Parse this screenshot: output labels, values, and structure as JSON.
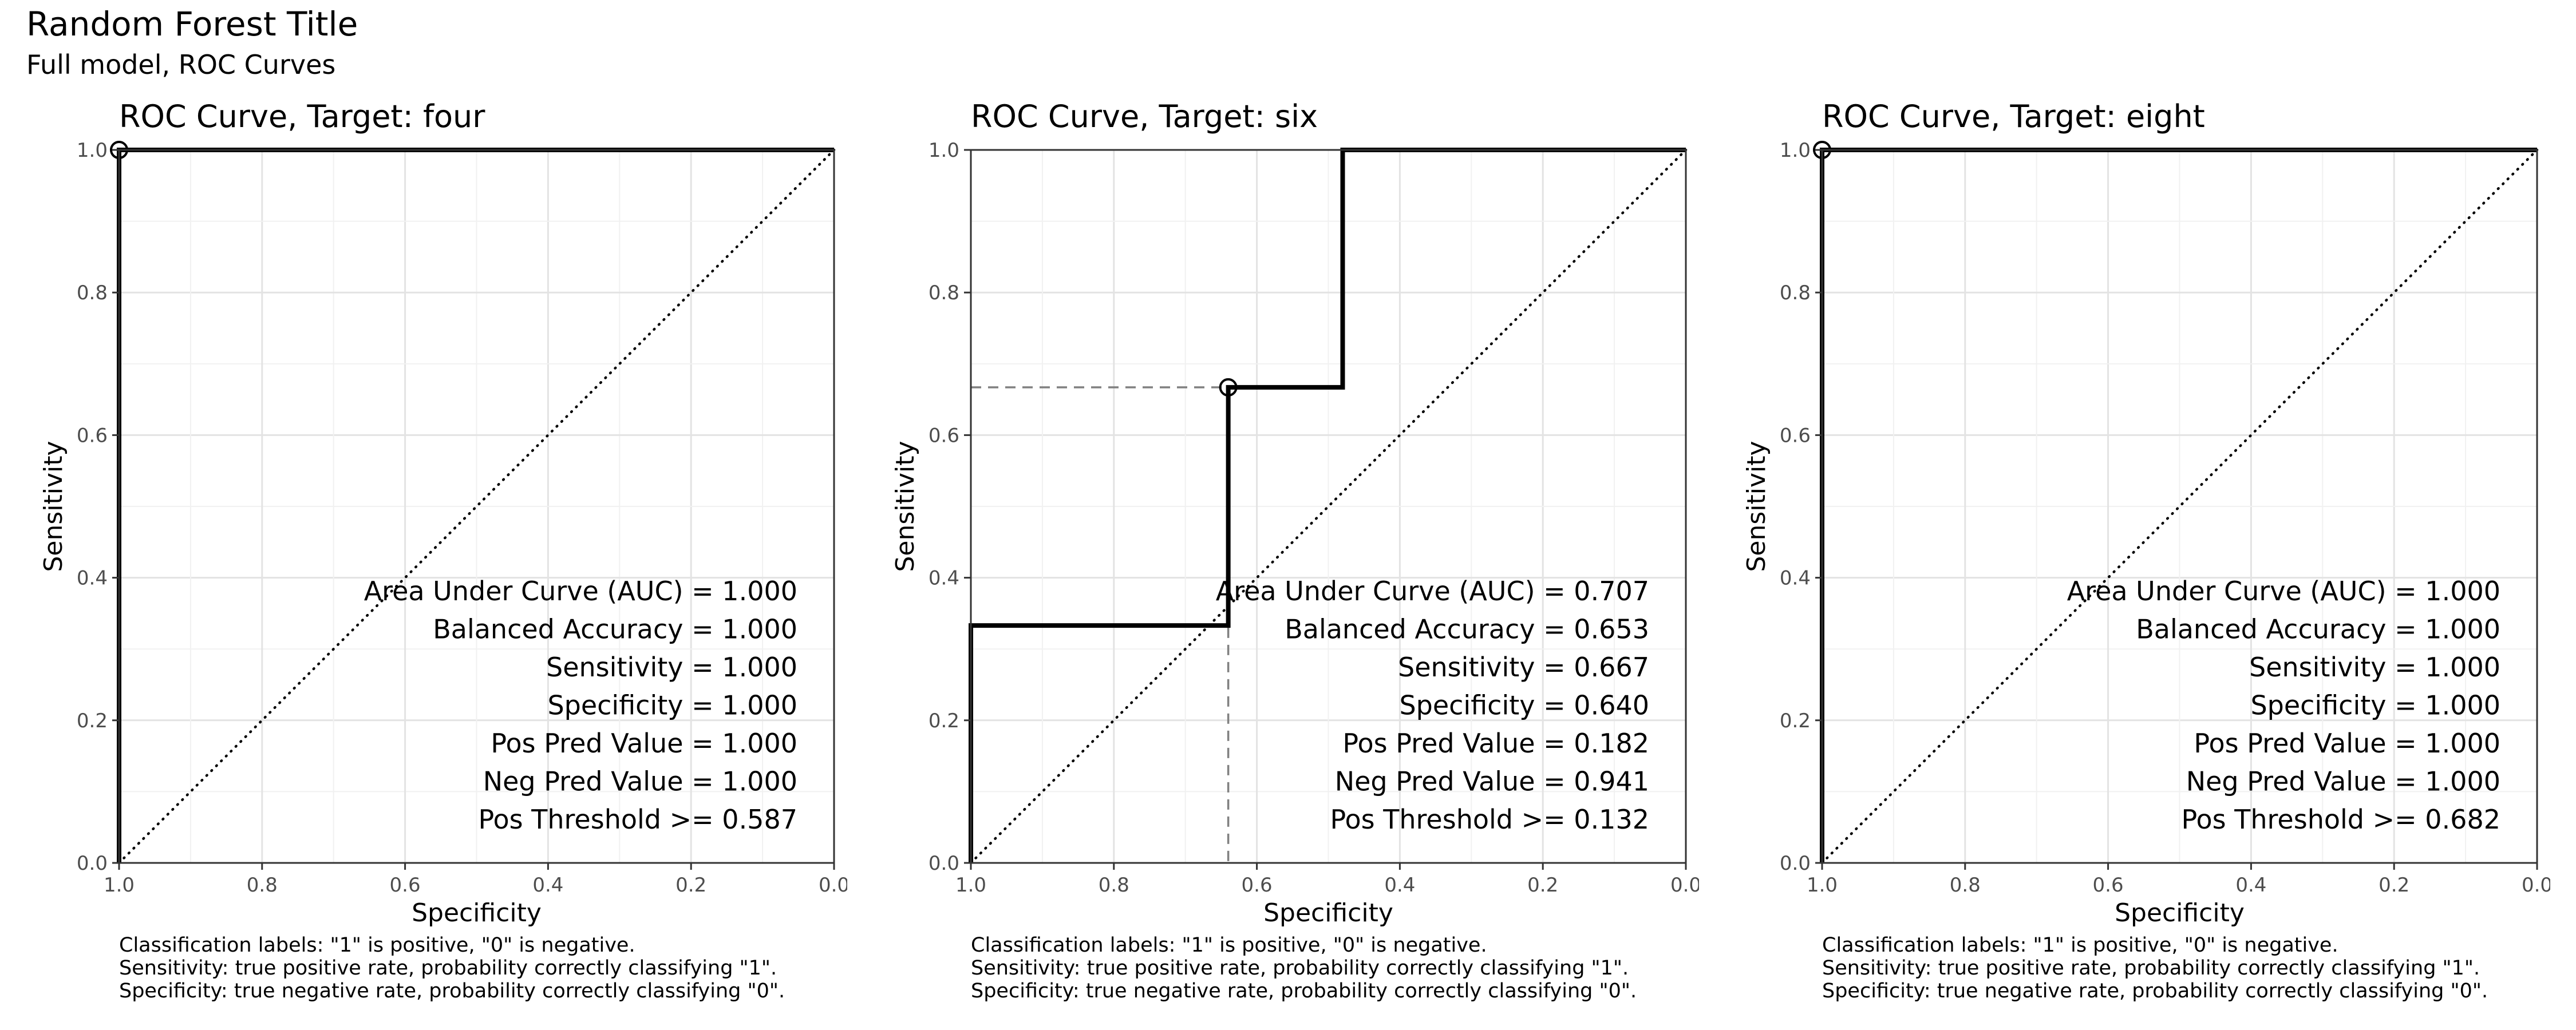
{
  "title": "Random Forest Title",
  "subtitle": "Full model, ROC Curves",
  "axes": {
    "xlabel": "Specificity",
    "ylabel": "Sensitivity",
    "xticks": [
      "1.0",
      "0.8",
      "0.6",
      "0.4",
      "0.2",
      "0.0"
    ],
    "yticks": [
      "0.0",
      "0.2",
      "0.4",
      "0.6",
      "0.8",
      "1.0"
    ]
  },
  "caption": [
    "Classification labels: \"1\" is positive, \"0\" is negative.",
    "Sensitivity: true positive rate, probability correctly classifying \"1\".",
    "Specificity: true negative rate, probability correctly classifying \"0\"."
  ],
  "chart_data": [
    {
      "type": "line",
      "title": "ROC Curve, Target:  four",
      "xlabel": "Specificity",
      "ylabel": "Sensitivity",
      "xlim": [
        1.0,
        0.0
      ],
      "ylim": [
        0.0,
        1.0
      ],
      "grid": true,
      "series": [
        {
          "specificity": [
            1.0,
            1.0,
            0.0
          ],
          "sensitivity": [
            0.0,
            1.0,
            1.0
          ]
        }
      ],
      "chance_line": [
        [
          1.0,
          0.0
        ],
        [
          0.0,
          1.0
        ]
      ],
      "optimal_point": {
        "specificity": 1.0,
        "sensitivity": 1.0
      },
      "stats": [
        "Area Under Curve (AUC) = 1.000",
        "Balanced Accuracy = 1.000",
        "Sensitivity = 1.000",
        "Specificity = 1.000",
        "Pos Pred Value = 1.000",
        "Neg Pred Value = 1.000",
        "Pos Threshold >= 0.587"
      ]
    },
    {
      "type": "line",
      "title": "ROC Curve, Target:  six",
      "xlabel": "Specificity",
      "ylabel": "Sensitivity",
      "xlim": [
        1.0,
        0.0
      ],
      "ylim": [
        0.0,
        1.0
      ],
      "grid": true,
      "series": [
        {
          "specificity": [
            1.0,
            1.0,
            0.64,
            0.64,
            0.48,
            0.48,
            0.0
          ],
          "sensitivity": [
            0.0,
            0.333,
            0.333,
            0.667,
            0.667,
            1.0,
            1.0
          ]
        }
      ],
      "chance_line": [
        [
          1.0,
          0.0
        ],
        [
          0.0,
          1.0
        ]
      ],
      "optimal_point": {
        "specificity": 0.64,
        "sensitivity": 0.667
      },
      "stats": [
        "Area Under Curve (AUC) = 0.707",
        "Balanced Accuracy = 0.653",
        "Sensitivity = 0.667",
        "Specificity = 0.640",
        "Pos Pred Value = 0.182",
        "Neg Pred Value = 0.941",
        "Pos Threshold >= 0.132"
      ]
    },
    {
      "type": "line",
      "title": "ROC Curve, Target:  eight",
      "xlabel": "Specificity",
      "ylabel": "Sensitivity",
      "xlim": [
        1.0,
        0.0
      ],
      "ylim": [
        0.0,
        1.0
      ],
      "grid": true,
      "series": [
        {
          "specificity": [
            1.0,
            1.0,
            0.0
          ],
          "sensitivity": [
            0.0,
            1.0,
            1.0
          ]
        }
      ],
      "chance_line": [
        [
          1.0,
          0.0
        ],
        [
          0.0,
          1.0
        ]
      ],
      "optimal_point": {
        "specificity": 1.0,
        "sensitivity": 1.0
      },
      "stats": [
        "Area Under Curve (AUC) = 1.000",
        "Balanced Accuracy = 1.000",
        "Sensitivity = 1.000",
        "Specificity = 1.000",
        "Pos Pred Value = 1.000",
        "Neg Pred Value = 1.000",
        "Pos Threshold >= 0.682"
      ]
    }
  ]
}
